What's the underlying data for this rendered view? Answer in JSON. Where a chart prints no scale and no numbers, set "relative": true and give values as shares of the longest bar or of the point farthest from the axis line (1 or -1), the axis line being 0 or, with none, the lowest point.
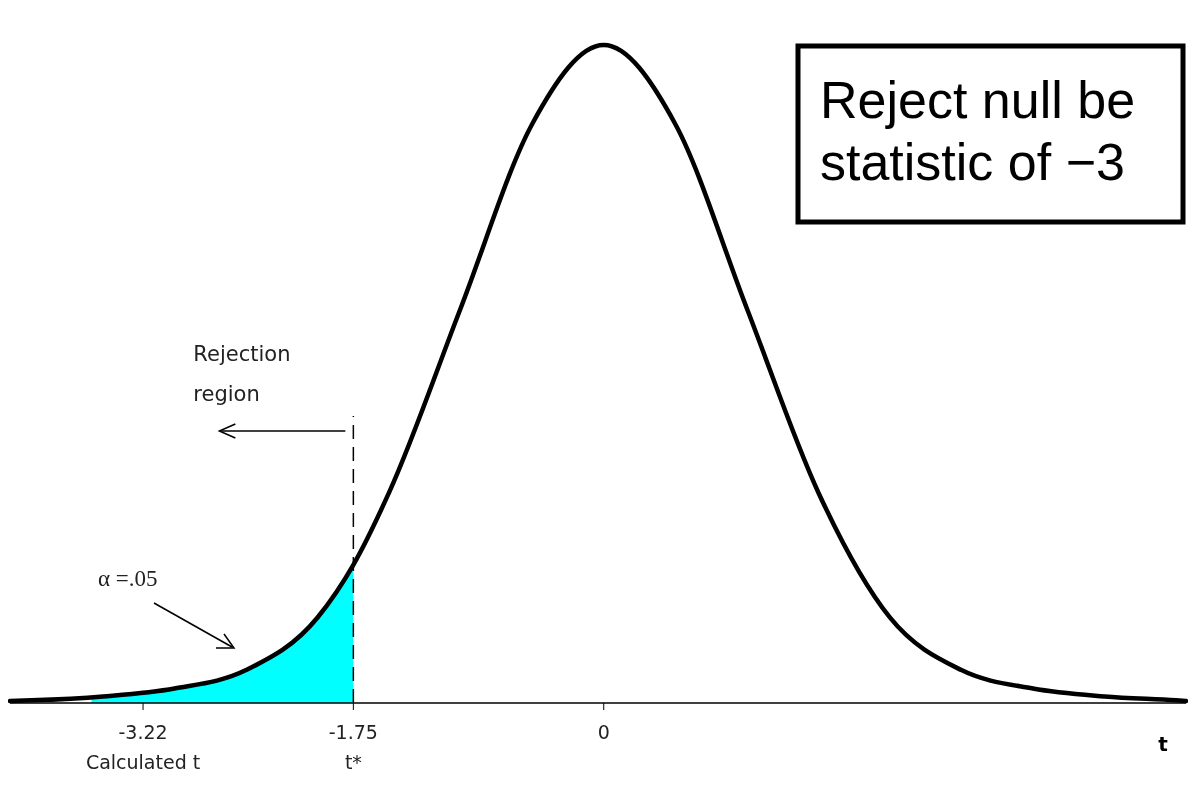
{
  "chart_data": {
    "type": "line",
    "relative": true,
    "xlabel": "t",
    "xlim": [
      -4.15,
      4.07
    ],
    "xticks": [
      {
        "value": -3.22,
        "label": "-3.22\nCalculated t"
      },
      {
        "value": -1.75,
        "label": "-1.75\nt*"
      },
      0
    ],
    "series": [
      {
        "type": "area",
        "color": "#00ffff",
        "x": [
          -3.58,
          -3.5,
          -3,
          -2.5,
          -2,
          -1.75
        ],
        "values": [
          0.008,
          0.01,
          0.022,
          0.05,
          0.13,
          0.21
        ]
      },
      {
        "color": "#000000",
        "x": [
          -4.15,
          -4,
          -3.5,
          -3,
          -2.5,
          -2,
          -1.75,
          -1.5,
          -1,
          -0.5,
          0,
          0.5,
          1,
          1.5,
          2,
          2.5,
          3,
          3.5,
          4,
          4.07
        ],
        "values": [
          0.003,
          0.004,
          0.01,
          0.022,
          0.05,
          0.13,
          0.21,
          0.32,
          0.6,
          0.88,
          1,
          0.88,
          0.6,
          0.32,
          0.13,
          0.05,
          0.022,
          0.01,
          0.004,
          0.003
        ]
      }
    ],
    "ref_lines": [
      {
        "axis": "x",
        "value": -1.75,
        "line_style": "dashed",
        "color": "#000000"
      }
    ],
    "annotations": [
      "Rejection region",
      "α =.05",
      "Reject null be\nstatistic of −3"
    ],
    "line_style": "solid"
  }
}
